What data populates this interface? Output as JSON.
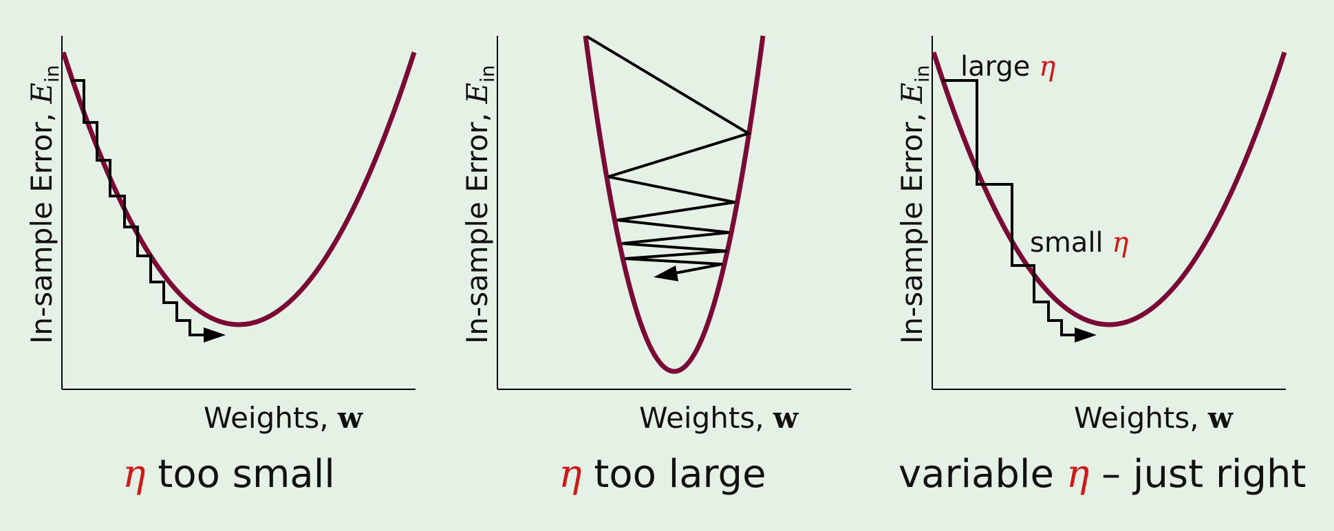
{
  "colors": {
    "background": "#e6f1e5",
    "curve": "#7a0a35",
    "path": "#000000",
    "eta": "#d01818",
    "axis": "#000000"
  },
  "panels": [
    {
      "ylabel_text": "In-sample Error, ",
      "ylabel_symbol": "E",
      "ylabel_subscript": "in",
      "xlabel_text": "Weights, ",
      "xlabel_symbol": "w",
      "caption_prefix": "",
      "caption_eta": "η",
      "caption_suffix": " too small"
    },
    {
      "ylabel_text": "In-sample Error, ",
      "ylabel_symbol": "E",
      "ylabel_subscript": "in",
      "xlabel_text": "Weights, ",
      "xlabel_symbol": "w",
      "caption_prefix": "",
      "caption_eta": "η",
      "caption_suffix": " too large"
    },
    {
      "ylabel_text": "In-sample Error, ",
      "ylabel_symbol": "E",
      "ylabel_subscript": "in",
      "xlabel_text": "Weights, ",
      "xlabel_symbol": "w",
      "caption_prefix": "variable ",
      "caption_eta": "η",
      "caption_suffix": " – just right",
      "annotations": {
        "large_text": "large ",
        "large_eta": "η",
        "small_text": "small ",
        "small_eta": "η"
      }
    }
  ]
}
